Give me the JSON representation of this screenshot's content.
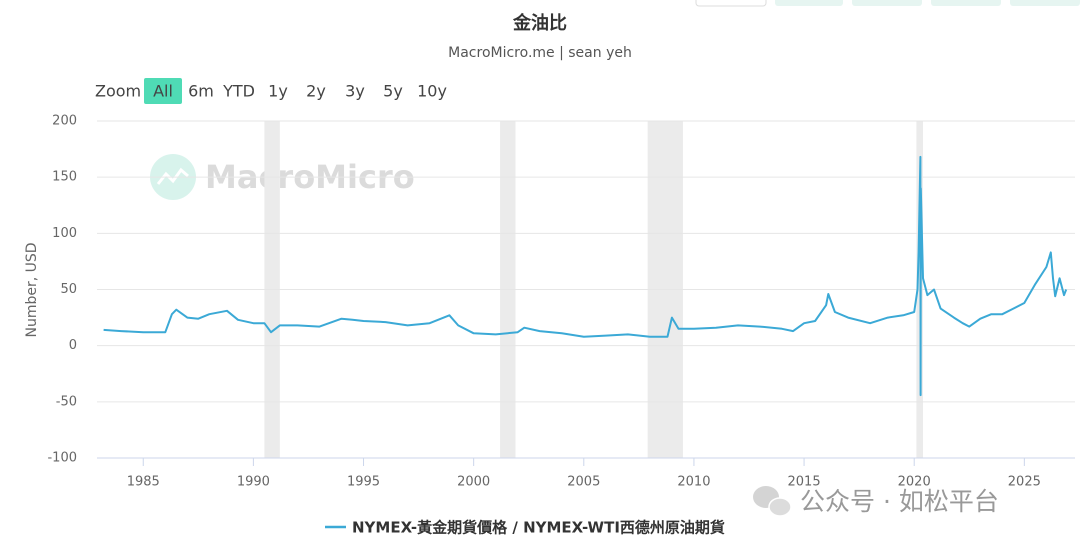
{
  "chart_data": {
    "type": "line",
    "title": "金油比",
    "subtitle": "MacroMicro.me | sean yeh",
    "y_label": "Number, USD",
    "x": [
      1983.2,
      1984,
      1985,
      1986.0,
      1986.3,
      1986.5,
      1987,
      1987.5,
      1988,
      1988.8,
      1989.3,
      1990,
      1990.5,
      1990.8,
      1991.2,
      1992,
      1993,
      1994,
      1994.5,
      1995,
      1996,
      1997,
      1998,
      1998.9,
      1999.3,
      2000,
      2001,
      2002,
      2002.3,
      2003,
      2004,
      2005,
      2006,
      2007,
      2008,
      2008.8,
      2009.0,
      2009.3,
      2010,
      2011,
      2012,
      2013,
      2014,
      2014.5,
      2015,
      2015.5,
      2016.0,
      2016.1,
      2016.4,
      2017,
      2018,
      2018.8,
      2019.5,
      2020.0,
      2020.15,
      2020.2,
      2020.28,
      2020.29,
      2020.3,
      2020.4,
      2020.6,
      2020.9,
      2021.2,
      2021.8,
      2022.2,
      2022.5,
      2023,
      2023.5,
      2024,
      2024.5,
      2025,
      2025.5,
      2026.0,
      2026.2,
      2026.3,
      2026.4,
      2026.6,
      2026.8,
      2026.9
    ],
    "series": [
      {
        "name": "NYMEX-黃金期貨價格 / NYMEX-WTI西德州原油期貨",
        "color": "#3ba9d6",
        "values": [
          14,
          13,
          12,
          12,
          28,
          32,
          25,
          24,
          28,
          31,
          23,
          20,
          20,
          12,
          18,
          18,
          17,
          24,
          23,
          22,
          21,
          18,
          20,
          27,
          18,
          11,
          10,
          12,
          16,
          13,
          11,
          8,
          9,
          10,
          8,
          8,
          25,
          15,
          15,
          16,
          18,
          17,
          15,
          13,
          20,
          22,
          36,
          46,
          30,
          25,
          20,
          25,
          27,
          30,
          50,
          83,
          168,
          -44,
          140,
          60,
          45,
          50,
          33,
          25,
          20,
          17,
          24,
          28,
          28,
          33,
          38,
          55,
          70,
          83,
          60,
          44,
          60,
          45,
          50
        ]
      }
    ],
    "shaded_ranges": [
      [
        1990.5,
        1991.2
      ],
      [
        2001.2,
        2001.9
      ],
      [
        2007.9,
        2009.5
      ],
      [
        2020.1,
        2020.4
      ]
    ],
    "shade_color": "#ebebeb",
    "xlim": [
      1982.9,
      2027.3
    ],
    "xticks": [
      1985,
      1990,
      1995,
      2000,
      2005,
      2010,
      2015,
      2020,
      2025
    ],
    "ylim": [
      -100,
      200
    ],
    "yticks": [
      -100,
      -50,
      0,
      50,
      100,
      150,
      200
    ],
    "grid": true
  },
  "zoom": {
    "label": "Zoom",
    "options": [
      "All",
      "6m",
      "YTD",
      "1y",
      "2y",
      "3y",
      "5y",
      "10y"
    ],
    "selected": 0
  },
  "watermarks": [
    "MacroMicro",
    "公众号 · 如松平台"
  ]
}
